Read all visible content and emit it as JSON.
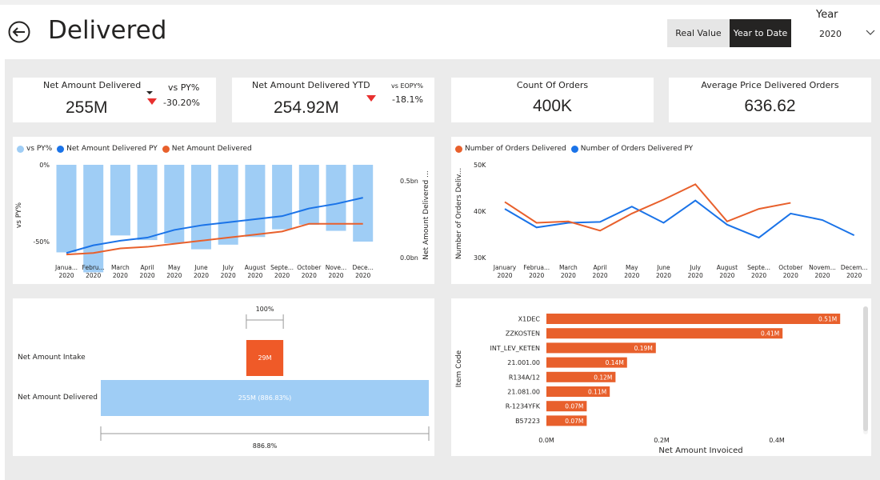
{
  "page": {
    "title": "Delivered"
  },
  "toolbar": {
    "real_value_label": "Real Value",
    "ytd_label": "Year to Date",
    "year_label": "Year",
    "year_value": "2020"
  },
  "kpis": {
    "net_amount": {
      "title": "Net Amount Delivered",
      "value": "255M",
      "vs_label": "vs PY%",
      "vs_value": "-30.20%"
    },
    "net_amount_ytd": {
      "title": "Net Amount Delivered YTD",
      "value": "254.92M",
      "vs_label": "vs EOPY%",
      "vs_value": "-18.1%"
    },
    "count_orders": {
      "title": "Count Of Orders",
      "value": "400K"
    },
    "avg_price": {
      "title": "Average Price Delivered Orders",
      "value": "636.62"
    }
  },
  "colors": {
    "light_blue": "#9fcdf5",
    "blue": "#1a73e8",
    "orange": "#e8602c",
    "dark": "#252423"
  },
  "chart_data": [
    {
      "type": "bar",
      "legend": [
        "vs PY%",
        "Net Amount Delivered PY",
        "Net Amount Delivered"
      ],
      "ylabel": "vs PY%",
      "y2label": "Net Amount Delivered ...",
      "yticks": [
        "0%",
        "-50%"
      ],
      "y2ticks": [
        "0.5bn",
        "0.0bn"
      ],
      "categories": [
        "Janua...",
        "Febru...",
        "March",
        "April",
        "May",
        "June",
        "July",
        "August",
        "Septe...",
        "October",
        "Nove...",
        "Dece..."
      ],
      "category_year": "2020",
      "series": [
        {
          "name": "vs PY%",
          "kind": "bar",
          "values": [
            -57,
            -70,
            -46,
            -49,
            -51,
            -55,
            -52,
            -47,
            -42,
            -39,
            -43,
            -50
          ]
        },
        {
          "name": "Net Amount Delivered PY",
          "kind": "line",
          "values": [
            0.03,
            0.08,
            0.11,
            0.13,
            0.18,
            0.21,
            0.23,
            0.25,
            0.27,
            0.32,
            0.35,
            0.39
          ]
        },
        {
          "name": "Net Amount Delivered",
          "kind": "line",
          "values": [
            0.02,
            0.03,
            0.06,
            0.07,
            0.09,
            0.11,
            0.13,
            0.15,
            0.17,
            0.22,
            0.22,
            0.22
          ]
        }
      ]
    },
    {
      "type": "line",
      "legend": [
        "Number of Orders Delivered",
        "Number of Orders Delivered PY"
      ],
      "ylabel": "Number of Orders Deliv...",
      "yticks": [
        "50K",
        "40K",
        "30K"
      ],
      "ylim": [
        30000,
        50000
      ],
      "categories": [
        "January",
        "Februa...",
        "March",
        "April",
        "May",
        "June",
        "July",
        "August",
        "Septe...",
        "October",
        "Novem...",
        "Decem..."
      ],
      "category_year": "2020",
      "series": [
        {
          "name": "Number of Orders Delivered",
          "values": [
            42000,
            37500,
            37800,
            35800,
            39500,
            42500,
            45800,
            37800,
            40500,
            41800,
            null,
            null
          ]
        },
        {
          "name": "Number of Orders Delivered PY",
          "values": [
            40500,
            36500,
            37500,
            37700,
            41000,
            37500,
            42300,
            37100,
            34300,
            39500,
            38100,
            34800
          ]
        }
      ]
    },
    {
      "type": "bar",
      "orientation": "horizontal",
      "ylabel": "Item Code",
      "xlabel": "Net Amount Invoiced",
      "xticks": [
        "0.0M",
        "0.2M",
        "0.4M"
      ],
      "categories": [
        "X1DEC",
        "ZZKOSTEN",
        "INT_LEV_KETEN",
        "21.001.00",
        "R134A/12",
        "21.081.00",
        "R-1234YFK",
        "B57223"
      ],
      "values": [
        0.51,
        0.41,
        0.19,
        0.14,
        0.12,
        0.11,
        0.07,
        0.07
      ],
      "data_labels": [
        "0.51M",
        "0.41M",
        "0.19M",
        "0.14M",
        "0.12M",
        "0.11M",
        "0.07M",
        "0.07M"
      ]
    }
  ],
  "funnel": {
    "intake_label": "Net Amount Intake",
    "delivered_label": "Net Amount Delivered",
    "intake_value": "29M",
    "delivered_value": "255M (886.83%)",
    "top_pct": "100%",
    "bottom_pct": "886.8%",
    "intake_ratio": 0.1128
  }
}
